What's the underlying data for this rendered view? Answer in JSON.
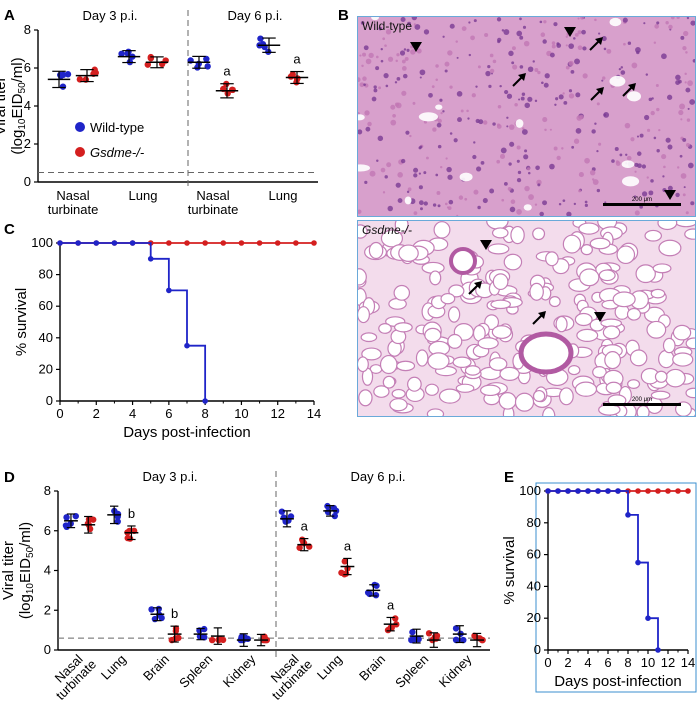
{
  "panels": {
    "A": {
      "letter": "A"
    },
    "B": {
      "letter": "B",
      "top_caption": "Wild-type",
      "bottom_caption": "Gsdme-/-",
      "scale_text": "200 μm"
    },
    "C": {
      "letter": "C"
    },
    "D": {
      "letter": "D"
    },
    "E": {
      "letter": "E"
    }
  },
  "colors": {
    "wild_type": "#1f24c8",
    "gsdme": "#d41f1f",
    "histo_bg": "#e7b9d8",
    "histo_dark": "#b25ca4"
  },
  "chart_data": [
    {
      "id": "A",
      "type": "scatter",
      "groups": [
        "Day 3 p.i.",
        "Day 6 p.i."
      ],
      "categories": [
        "Nasal turbinate",
        "Lung",
        "Nasal turbinate",
        "Lung"
      ],
      "ylabel_line1": "Viral titer",
      "ylabel_line2": "(log10EID50/ml)",
      "yticks": [
        "0",
        "2",
        "4",
        "6",
        "8"
      ],
      "ylim": [
        0,
        8
      ],
      "detection_limit": 0.5,
      "legend": [
        "Wild-type",
        "Gsdme-/-"
      ],
      "series": [
        {
          "name": "Wild-type",
          "mean": [
            5.4,
            6.6,
            6.3,
            7.2
          ]
        },
        {
          "name": "Gsdme-/-",
          "mean": [
            5.6,
            6.3,
            4.8,
            5.5
          ]
        }
      ],
      "annotations": [
        "a",
        "a"
      ]
    },
    {
      "id": "C",
      "type": "line",
      "xlabel": "Days post-infection",
      "ylabel": "% survival",
      "xticks": [
        "0",
        "2",
        "4",
        "6",
        "8",
        "10",
        "12",
        "14"
      ],
      "yticks": [
        "0",
        "20",
        "40",
        "60",
        "80",
        "100"
      ],
      "xlim": [
        0,
        14
      ],
      "ylim": [
        0,
        100
      ],
      "series": [
        {
          "name": "Wild-type",
          "x": [
            0,
            5,
            6,
            7,
            8
          ],
          "y": [
            100,
            90,
            70,
            35,
            0
          ]
        },
        {
          "name": "Gsdme-/-",
          "x": [
            0,
            14
          ],
          "y": [
            100,
            100
          ]
        }
      ]
    },
    {
      "id": "D",
      "type": "scatter",
      "groups": [
        "Day 3 p.i.",
        "Day 6 p.i."
      ],
      "categories": [
        "Nasal turbinate",
        "Lung",
        "Brain",
        "Spleen",
        "Kidney",
        "Nasal turbinate",
        "Lung",
        "Brain",
        "Spleen",
        "Kidney"
      ],
      "ylabel_line1": "Viral titer",
      "ylabel_line2": "(log10EID50/ml)",
      "yticks": [
        "0",
        "2",
        "4",
        "6",
        "8"
      ],
      "ylim": [
        0,
        8
      ],
      "detection_limit": 0.6,
      "series": [
        {
          "name": "Wild-type",
          "mean": [
            6.5,
            6.8,
            1.8,
            0.8,
            0.5,
            6.6,
            7.0,
            3.0,
            0.7,
            0.8
          ]
        },
        {
          "name": "Gsdme-/-",
          "mean": [
            6.3,
            5.9,
            0.8,
            0.7,
            0.5,
            5.3,
            4.2,
            1.3,
            0.5,
            0.5
          ]
        }
      ],
      "annotations": [
        "b",
        "b",
        "a",
        "a",
        "a"
      ]
    },
    {
      "id": "E",
      "type": "line",
      "xlabel": "Days post-infection",
      "ylabel": "% survival",
      "xticks": [
        "0",
        "2",
        "4",
        "6",
        "8",
        "10",
        "12",
        "14"
      ],
      "yticks": [
        "0",
        "20",
        "40",
        "60",
        "80",
        "100"
      ],
      "xlim": [
        0,
        14
      ],
      "ylim": [
        0,
        100
      ],
      "series": [
        {
          "name": "Wild-type",
          "x": [
            0,
            8,
            9,
            10,
            11
          ],
          "y": [
            100,
            85,
            55,
            20,
            0
          ]
        },
        {
          "name": "Gsdme-/-",
          "x": [
            0,
            14
          ],
          "y": [
            100,
            100
          ]
        }
      ]
    }
  ]
}
